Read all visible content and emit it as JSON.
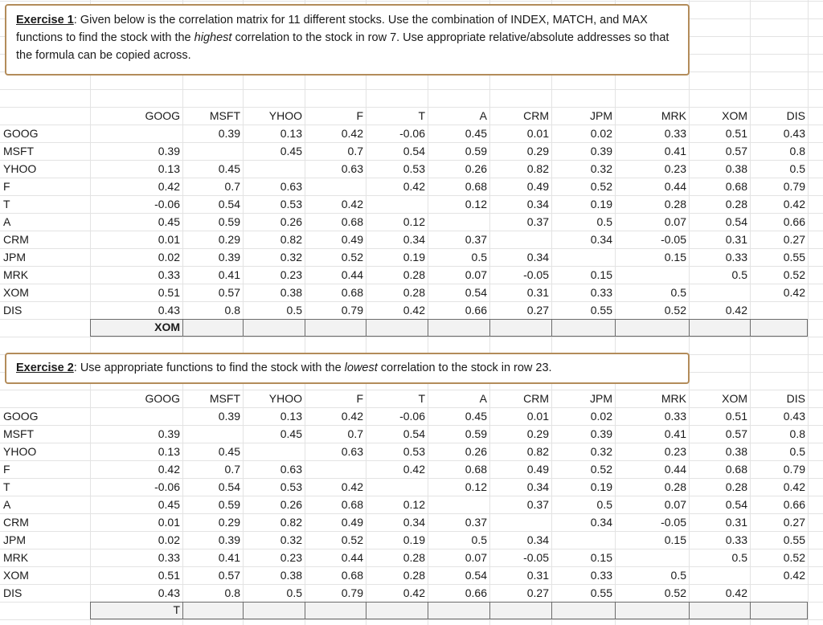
{
  "exercise1": {
    "label": "Exercise 1",
    "text_a": ": Given below is the correlation matrix for 11 different stocks. Use the combination of INDEX, MATCH, and MAX functions to find the stock with the ",
    "emphasis": "highest",
    "text_b": " correlation to the stock in  row 7. Use appropriate relative/absolute addresses so that the formula can be copied across.",
    "headers": [
      "GOOG",
      "MSFT",
      "YHOO",
      "F",
      "T",
      "A",
      "CRM",
      "JPM",
      "MRK",
      "XOM",
      "DIS"
    ],
    "rows": [
      {
        "label": "GOOG",
        "values": [
          "",
          "0.39",
          "0.13",
          "0.42",
          "-0.06",
          "0.45",
          "0.01",
          "0.02",
          "0.33",
          "0.51",
          "0.43"
        ]
      },
      {
        "label": "MSFT",
        "values": [
          "0.39",
          "",
          "0.45",
          "0.7",
          "0.54",
          "0.59",
          "0.29",
          "0.39",
          "0.41",
          "0.57",
          "0.8"
        ]
      },
      {
        "label": "YHOO",
        "values": [
          "0.13",
          "0.45",
          "",
          "0.63",
          "0.53",
          "0.26",
          "0.82",
          "0.32",
          "0.23",
          "0.38",
          "0.5"
        ]
      },
      {
        "label": "F",
        "values": [
          "0.42",
          "0.7",
          "0.63",
          "",
          "0.42",
          "0.68",
          "0.49",
          "0.52",
          "0.44",
          "0.68",
          "0.79"
        ]
      },
      {
        "label": "T",
        "values": [
          "-0.06",
          "0.54",
          "0.53",
          "0.42",
          "",
          "0.12",
          "0.34",
          "0.19",
          "0.28",
          "0.28",
          "0.42"
        ]
      },
      {
        "label": "A",
        "values": [
          "0.45",
          "0.59",
          "0.26",
          "0.68",
          "0.12",
          "",
          "0.37",
          "0.5",
          "0.07",
          "0.54",
          "0.66"
        ]
      },
      {
        "label": "CRM",
        "values": [
          "0.01",
          "0.29",
          "0.82",
          "0.49",
          "0.34",
          "0.37",
          "",
          "0.34",
          "-0.05",
          "0.31",
          "0.27"
        ]
      },
      {
        "label": "JPM",
        "values": [
          "0.02",
          "0.39",
          "0.32",
          "0.52",
          "0.19",
          "0.5",
          "0.34",
          "",
          "0.15",
          "0.33",
          "0.55"
        ]
      },
      {
        "label": "MRK",
        "values": [
          "0.33",
          "0.41",
          "0.23",
          "0.44",
          "0.28",
          "0.07",
          "-0.05",
          "0.15",
          "",
          "0.5",
          "0.52"
        ]
      },
      {
        "label": "XOM",
        "values": [
          "0.51",
          "0.57",
          "0.38",
          "0.68",
          "0.28",
          "0.54",
          "0.31",
          "0.33",
          "0.5",
          "",
          "0.42"
        ]
      },
      {
        "label": "DIS",
        "values": [
          "0.43",
          "0.8",
          "0.5",
          "0.79",
          "0.42",
          "0.66",
          "0.27",
          "0.55",
          "0.52",
          "0.42",
          ""
        ]
      }
    ],
    "answer": "XOM"
  },
  "exercise2": {
    "label": "Exercise 2",
    "text_a": ": Use appropriate functions to find the stock with the ",
    "emphasis": "lowest",
    "text_b": " correlation to the stock in row 23.",
    "headers": [
      "GOOG",
      "MSFT",
      "YHOO",
      "F",
      "T",
      "A",
      "CRM",
      "JPM",
      "MRK",
      "XOM",
      "DIS"
    ],
    "rows": [
      {
        "label": "GOOG",
        "values": [
          "",
          "0.39",
          "0.13",
          "0.42",
          "-0.06",
          "0.45",
          "0.01",
          "0.02",
          "0.33",
          "0.51",
          "0.43"
        ]
      },
      {
        "label": "MSFT",
        "values": [
          "0.39",
          "",
          "0.45",
          "0.7",
          "0.54",
          "0.59",
          "0.29",
          "0.39",
          "0.41",
          "0.57",
          "0.8"
        ]
      },
      {
        "label": "YHOO",
        "values": [
          "0.13",
          "0.45",
          "",
          "0.63",
          "0.53",
          "0.26",
          "0.82",
          "0.32",
          "0.23",
          "0.38",
          "0.5"
        ]
      },
      {
        "label": "F",
        "values": [
          "0.42",
          "0.7",
          "0.63",
          "",
          "0.42",
          "0.68",
          "0.49",
          "0.52",
          "0.44",
          "0.68",
          "0.79"
        ]
      },
      {
        "label": "T",
        "values": [
          "-0.06",
          "0.54",
          "0.53",
          "0.42",
          "",
          "0.12",
          "0.34",
          "0.19",
          "0.28",
          "0.28",
          "0.42"
        ]
      },
      {
        "label": "A",
        "values": [
          "0.45",
          "0.59",
          "0.26",
          "0.68",
          "0.12",
          "",
          "0.37",
          "0.5",
          "0.07",
          "0.54",
          "0.66"
        ]
      },
      {
        "label": "CRM",
        "values": [
          "0.01",
          "0.29",
          "0.82",
          "0.49",
          "0.34",
          "0.37",
          "",
          "0.34",
          "-0.05",
          "0.31",
          "0.27"
        ]
      },
      {
        "label": "JPM",
        "values": [
          "0.02",
          "0.39",
          "0.32",
          "0.52",
          "0.19",
          "0.5",
          "0.34",
          "",
          "0.15",
          "0.33",
          "0.55"
        ]
      },
      {
        "label": "MRK",
        "values": [
          "0.33",
          "0.41",
          "0.23",
          "0.44",
          "0.28",
          "0.07",
          "-0.05",
          "0.15",
          "",
          "0.5",
          "0.52"
        ]
      },
      {
        "label": "XOM",
        "values": [
          "0.51",
          "0.57",
          "0.38",
          "0.68",
          "0.28",
          "0.54",
          "0.31",
          "0.33",
          "0.5",
          "",
          "0.42"
        ]
      },
      {
        "label": "DIS",
        "values": [
          "0.43",
          "0.8",
          "0.5",
          "0.79",
          "0.42",
          "0.66",
          "0.27",
          "0.55",
          "0.52",
          "0.42",
          ""
        ]
      }
    ],
    "answer": "T"
  },
  "colors": {
    "note_border": "#b38c5a",
    "answer_fill": "#f2f2f2",
    "grid": "#e3e3e3"
  }
}
